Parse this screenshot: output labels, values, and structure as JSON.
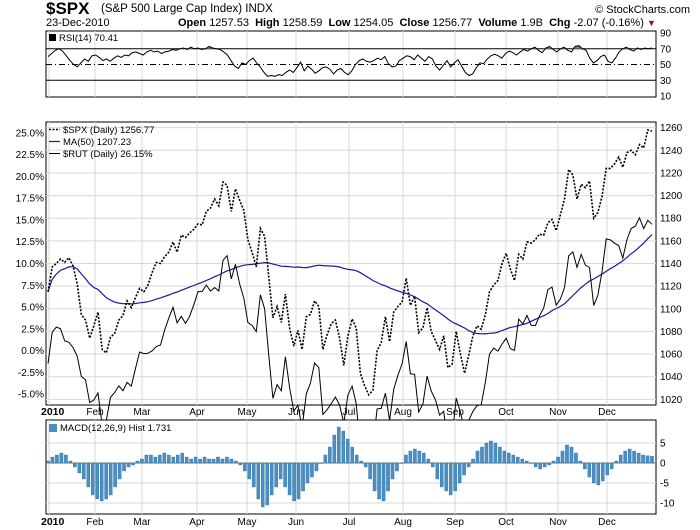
{
  "header": {
    "ticker": "$SPX",
    "name": "(S&P 500 Large Cap Index)",
    "exchange": "INDX",
    "date": "23-Dec-2010",
    "open_label": "Open",
    "open": "1257.53",
    "high_label": "High",
    "high": "1258.59",
    "low_label": "Low",
    "low": "1254.05",
    "close_label": "Close",
    "close": "1256.77",
    "volume_label": "Volume",
    "volume": "1.9B",
    "chg_label": "Chg",
    "chg": "-2.07 (-0.16%)",
    "credit": "© StockCharts.com"
  },
  "colors": {
    "ma": "#1a1a9a",
    "hist": "#4a8fc4",
    "rsi_fill": "#6a8f6a",
    "grid": "#d8d8d8"
  },
  "chart_data": [
    {
      "type": "line",
      "name": "rsi",
      "legend": "RSI(14) 70.41",
      "yticks": [
        "90",
        "70",
        "50",
        "30",
        "10"
      ],
      "guide_levels": [
        70,
        50,
        30
      ],
      "ylim": [
        10,
        90
      ],
      "values": [
        60,
        64,
        68,
        70,
        67,
        61,
        55,
        50,
        47,
        52,
        57,
        54,
        61,
        62,
        59,
        55,
        57,
        54,
        58,
        61,
        59,
        62,
        61,
        65,
        66,
        64,
        62,
        66,
        68,
        66,
        67,
        64,
        66,
        67,
        69,
        68,
        70,
        71,
        69,
        72,
        70,
        71,
        69,
        70,
        73,
        71,
        70,
        69,
        66,
        62,
        55,
        48,
        45,
        52,
        50,
        55,
        58,
        52,
        47,
        40,
        35,
        36,
        35,
        37,
        36,
        40,
        43,
        40,
        46,
        53,
        42,
        48,
        44,
        39,
        42,
        46,
        47,
        44,
        38,
        43,
        45,
        40,
        37,
        42,
        50,
        55,
        57,
        54,
        53,
        55,
        58,
        56,
        60,
        51,
        47,
        48,
        55,
        58,
        61,
        60,
        56,
        62,
        58,
        54,
        60,
        57,
        48,
        43,
        49,
        55,
        47,
        52,
        56,
        48,
        40,
        36,
        38,
        46,
        52,
        51,
        57,
        61,
        63,
        61,
        58,
        64,
        67,
        65,
        62,
        66,
        69,
        67,
        70,
        72,
        68,
        65,
        71,
        73,
        69,
        66,
        70,
        72,
        68,
        66,
        73,
        74,
        70,
        68,
        58,
        52,
        55,
        60,
        62,
        54,
        52,
        58,
        66,
        70,
        72,
        69,
        67,
        71,
        69,
        71,
        70,
        71
      ]
    },
    {
      "type": "line",
      "name": "price",
      "legend": [
        "$SPX (Daily) 1256.77",
        "MA(50) 1207.23",
        "$RUT (Daily) 26.15%"
      ],
      "series_names": [
        "$SPX (Daily)",
        "MA(50)",
        "$RUT (Daily)"
      ],
      "x": [
        "2010",
        "Feb",
        "Mar",
        "Apr",
        "May",
        "Jun",
        "Jul",
        "Aug",
        "Sep",
        "Oct",
        "Nov",
        "Dec"
      ],
      "left_yticks": [
        "25.0%",
        "22.5%",
        "20.0%",
        "17.5%",
        "15.0%",
        "12.5%",
        "10.0%",
        "7.5%",
        "5.0%",
        "2.5%",
        "0.0%",
        "-2.5%",
        "-5.0%"
      ],
      "left_ylim": [
        -6.25,
        26.25
      ],
      "right_yticks": [
        "1260",
        "1240",
        "1220",
        "1200",
        "1180",
        "1160",
        "1140",
        "1120",
        "1100",
        "1080",
        "1060",
        "1040",
        "1020"
      ],
      "right_ylim": [
        1015,
        1265
      ],
      "spx": [
        1115,
        1137,
        1140,
        1144,
        1141,
        1145,
        1138,
        1122,
        1095,
        1090,
        1074,
        1085,
        1097,
        1064,
        1061,
        1075,
        1078,
        1090,
        1094,
        1107,
        1101,
        1110,
        1118,
        1115,
        1121,
        1132,
        1141,
        1140,
        1146,
        1150,
        1159,
        1150,
        1165,
        1163,
        1167,
        1170,
        1175,
        1174,
        1186,
        1189,
        1197,
        1191,
        1212,
        1209,
        1186,
        1206,
        1196,
        1187,
        1161,
        1150,
        1137,
        1171,
        1164,
        1128,
        1092,
        1102,
        1088,
        1113,
        1083,
        1067,
        1081,
        1064,
        1093,
        1095,
        1107,
        1102,
        1064,
        1077,
        1087,
        1090,
        1074,
        1050,
        1076,
        1091,
        1083,
        1043,
        1032,
        1024,
        1028,
        1063,
        1070,
        1093,
        1071,
        1097,
        1102,
        1106,
        1127,
        1103,
        1111,
        1079,
        1083,
        1101,
        1080,
        1072,
        1064,
        1076,
        1048,
        1051,
        1080,
        1060,
        1043,
        1059,
        1076,
        1085,
        1082,
        1095,
        1115,
        1121,
        1125,
        1140,
        1149,
        1135,
        1125,
        1148,
        1144,
        1159,
        1158,
        1161,
        1166,
        1165,
        1176,
        1179,
        1169,
        1183,
        1197,
        1223,
        1218,
        1197,
        1210,
        1207,
        1213,
        1180,
        1185,
        1199,
        1224,
        1224,
        1228,
        1234,
        1225,
        1238,
        1240,
        1236,
        1245,
        1242,
        1258,
        1257
      ]
    },
    {
      "type": "bar",
      "name": "macd",
      "legend": "MACD(12,26,9) Hist 1.731",
      "yticks": [
        "5",
        "0",
        "-5",
        "-10"
      ],
      "ylim": [
        -12,
        10
      ],
      "values": [
        0.5,
        1.5,
        2.0,
        2.5,
        2.0,
        0.5,
        -1.0,
        -2.5,
        -4.0,
        -6.0,
        -8.0,
        -9.0,
        -9.5,
        -9.0,
        -8.0,
        -6.0,
        -4.0,
        -2.0,
        -1.0,
        -0.5,
        0.5,
        1.0,
        2.0,
        2.0,
        1.5,
        2.0,
        2.5,
        2.0,
        1.5,
        2.0,
        2.5,
        1.5,
        1.0,
        1.5,
        1.0,
        1.5,
        1.0,
        1.0,
        1.5,
        1.0,
        1.5,
        1.0,
        0.5,
        -0.5,
        -2.0,
        -4.0,
        -6.0,
        -9.0,
        -11.0,
        -10.5,
        -8.0,
        -6.0,
        -4.0,
        -6.0,
        -8.0,
        -9.5,
        -9.0,
        -7.0,
        -5.0,
        -3.5,
        -2.0,
        0.0,
        2.0,
        4.0,
        7.0,
        9.0,
        8.0,
        6.0,
        4.0,
        2.0,
        0.5,
        -1.0,
        -4.0,
        -7.0,
        -9.0,
        -9.5,
        -7.0,
        -4.0,
        -2.0,
        0.0,
        2.0,
        3.0,
        3.5,
        3.0,
        2.5,
        1.0,
        -1.0,
        -4.0,
        -6.0,
        -7.0,
        -8.0,
        -7.0,
        -5.0,
        -3.0,
        -1.0,
        1.0,
        3.0,
        4.0,
        5.0,
        5.5,
        5.0,
        4.0,
        3.0,
        2.5,
        2.0,
        1.5,
        1.0,
        0.5,
        0.0,
        -1.0,
        -1.5,
        -1.0,
        -0.5,
        0.5,
        1.5,
        3.0,
        4.5,
        4.0,
        2.5,
        0.5,
        -1.5,
        -3.5,
        -5.0,
        -5.5,
        -4.5,
        -3.0,
        -1.5,
        0.5,
        2.0,
        3.0,
        3.5,
        3.0,
        2.5,
        2.0,
        1.8,
        1.7
      ]
    }
  ]
}
